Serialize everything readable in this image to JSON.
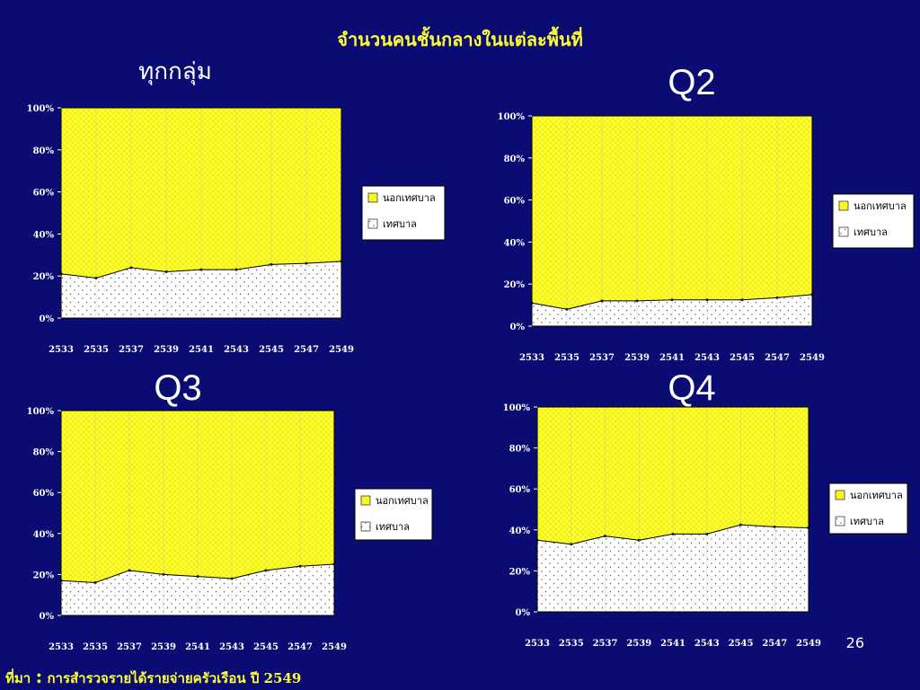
{
  "slide": {
    "title": "จำนวนคนชั้นกลางในแต่ละพื้นที่",
    "slide_number": "26",
    "source_label": "ที่มา",
    "source_colon": ":",
    "source_text": "การสำรวจรายได้รายจ่ายครัวเรือน ปี 2549"
  },
  "colors": {
    "background": "#0b0b74",
    "title": "#ffff33",
    "outer_area": "#ffff33",
    "inner_area": "#ffffff",
    "plot_border": "#000000"
  },
  "chart_data": [
    {
      "type": "area",
      "stacked": "percent",
      "title": "ทุกกลุ่ม",
      "x": [
        "2533",
        "2535",
        "2537",
        "2539",
        "2541",
        "2543",
        "2545",
        "2547",
        "2549"
      ],
      "y_ticks": [
        "0%",
        "20%",
        "40%",
        "60%",
        "80%",
        "100%"
      ],
      "ylim": [
        0,
        100
      ],
      "legend": "right",
      "series": [
        {
          "name": "นอกเทศบาล",
          "values": [
            79,
            81,
            76,
            78,
            77,
            77,
            74.5,
            74,
            73
          ]
        },
        {
          "name": "เทศบาล",
          "values": [
            21,
            19,
            24,
            22,
            23,
            23,
            25.5,
            26,
            27
          ]
        }
      ]
    },
    {
      "type": "area",
      "stacked": "percent",
      "title": "Q2",
      "x": [
        "2533",
        "2535",
        "2537",
        "2539",
        "2541",
        "2543",
        "2545",
        "2547",
        "2549"
      ],
      "y_ticks": [
        "0%",
        "20%",
        "40%",
        "60%",
        "80%",
        "100%"
      ],
      "ylim": [
        0,
        100
      ],
      "legend": "right",
      "series": [
        {
          "name": "นอกเทศบาล",
          "values": [
            89,
            92,
            88,
            88,
            87.5,
            87.5,
            87.5,
            86.5,
            85
          ]
        },
        {
          "name": "เทศบาล",
          "values": [
            11,
            8,
            12,
            12,
            12.5,
            12.5,
            12.5,
            13.5,
            15
          ]
        }
      ]
    },
    {
      "type": "area",
      "stacked": "percent",
      "title": "Q3",
      "x": [
        "2533",
        "2535",
        "2537",
        "2539",
        "2541",
        "2543",
        "2545",
        "2547",
        "2549"
      ],
      "y_ticks": [
        "0%",
        "20%",
        "40%",
        "60%",
        "80%",
        "100%"
      ],
      "ylim": [
        0,
        100
      ],
      "legend": "right",
      "series": [
        {
          "name": "นอกเทศบาล",
          "values": [
            83,
            84,
            78,
            80,
            81,
            82,
            78,
            76,
            75
          ]
        },
        {
          "name": "เทศบาล",
          "values": [
            17,
            16,
            22,
            20,
            19,
            18,
            22,
            24,
            25
          ]
        }
      ]
    },
    {
      "type": "area",
      "stacked": "percent",
      "title": "Q4",
      "x": [
        "2533",
        "2535",
        "2537",
        "2539",
        "2541",
        "2543",
        "2545",
        "2547",
        "2549"
      ],
      "y_ticks": [
        "0%",
        "20%",
        "40%",
        "60%",
        "80%",
        "100%"
      ],
      "ylim": [
        0,
        100
      ],
      "legend": "right",
      "series": [
        {
          "name": "นอกเทศบาล",
          "values": [
            65,
            67,
            63,
            65,
            62,
            62,
            57.5,
            58.5,
            59
          ]
        },
        {
          "name": "เทศบาล",
          "values": [
            35,
            33,
            37,
            35,
            38,
            38,
            42.5,
            41.5,
            41
          ]
        }
      ]
    }
  ]
}
